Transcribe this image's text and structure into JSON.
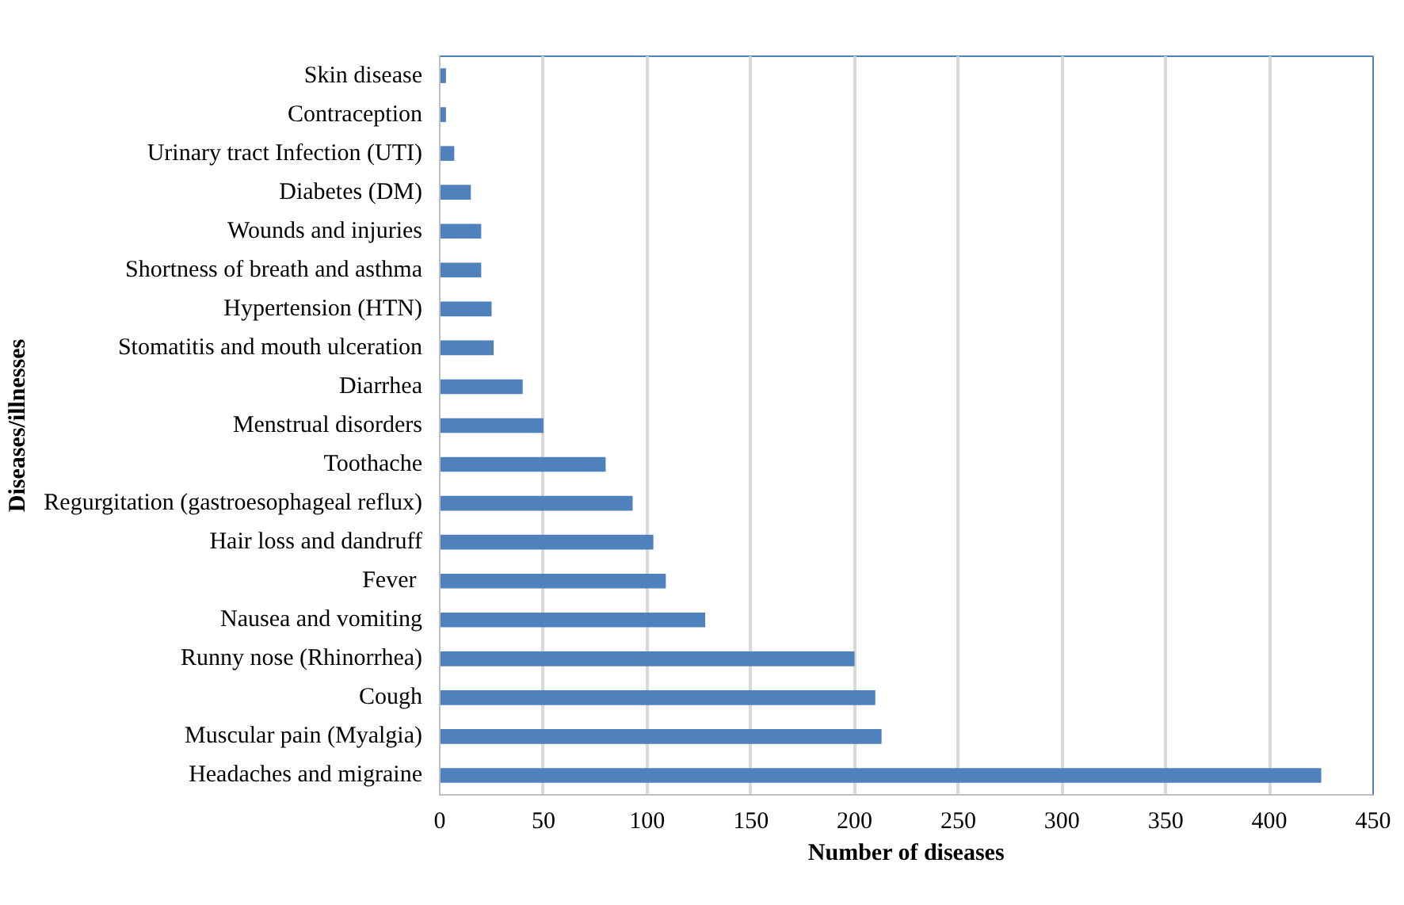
{
  "chart_data": {
    "type": "bar",
    "orientation": "horizontal",
    "xlabel": "Number of diseases",
    "ylabel": "Diseases/illnesses",
    "categories": [
      "Skin disease",
      "Contraception",
      "Urinary tract Infection (UTI)",
      "Diabetes (DM)",
      "Wounds and injuries",
      "Shortness of breath and asthma",
      "Hypertension (HTN)",
      "Stomatitis and mouth ulceration",
      "Diarrhea",
      "Menstrual disorders",
      "Toothache",
      "Regurgitation (gastroesophageal reflux)",
      "Hair loss and dandruff",
      "Fever ",
      "Nausea and vomiting",
      "Runny nose (Rhinorrhea)",
      "Cough",
      "Muscular pain (Myalgia)",
      "Headaches and migraine"
    ],
    "values": [
      3,
      3,
      7,
      15,
      20,
      20,
      25,
      26,
      40,
      50,
      80,
      93,
      103,
      109,
      128,
      200,
      210,
      213,
      425
    ],
    "color": "#4f81bd",
    "xlim": [
      0,
      450
    ],
    "xticks": [
      0,
      50,
      100,
      150,
      200,
      250,
      300,
      350,
      400,
      450
    ],
    "grid": "x"
  }
}
